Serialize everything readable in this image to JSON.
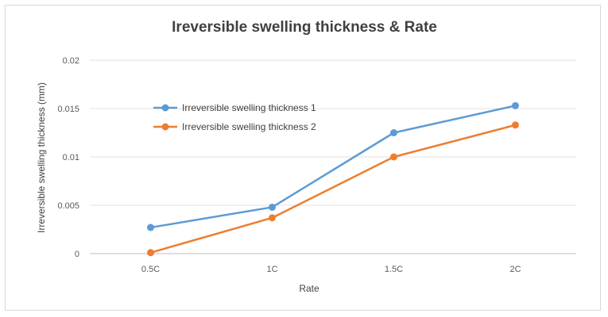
{
  "chart_data": {
    "type": "line",
    "title": "Ireversible swelling thickness  & Rate",
    "xlabel": "Rate",
    "ylabel": "Irreversible swelling thickness (mm)",
    "categories": [
      "0.5C",
      "1C",
      "1.5C",
      "2C"
    ],
    "ylim": [
      0,
      0.02
    ],
    "yticks": [
      0,
      0.005,
      0.01,
      0.015,
      0.02
    ],
    "ytick_labels": [
      "0",
      "0.005",
      "0.01",
      "0.015",
      "0.02"
    ],
    "grid": true,
    "legend_position": "upper-left",
    "series": [
      {
        "name": "Irreversible swelling thickness 1",
        "color": "#5b9bd5",
        "values": [
          0.0027,
          0.0048,
          0.0125,
          0.0153
        ]
      },
      {
        "name": "Irreversible swelling thickness 2",
        "color": "#ed7d31",
        "values": [
          0.0001,
          0.0037,
          0.01,
          0.0133
        ]
      }
    ]
  }
}
